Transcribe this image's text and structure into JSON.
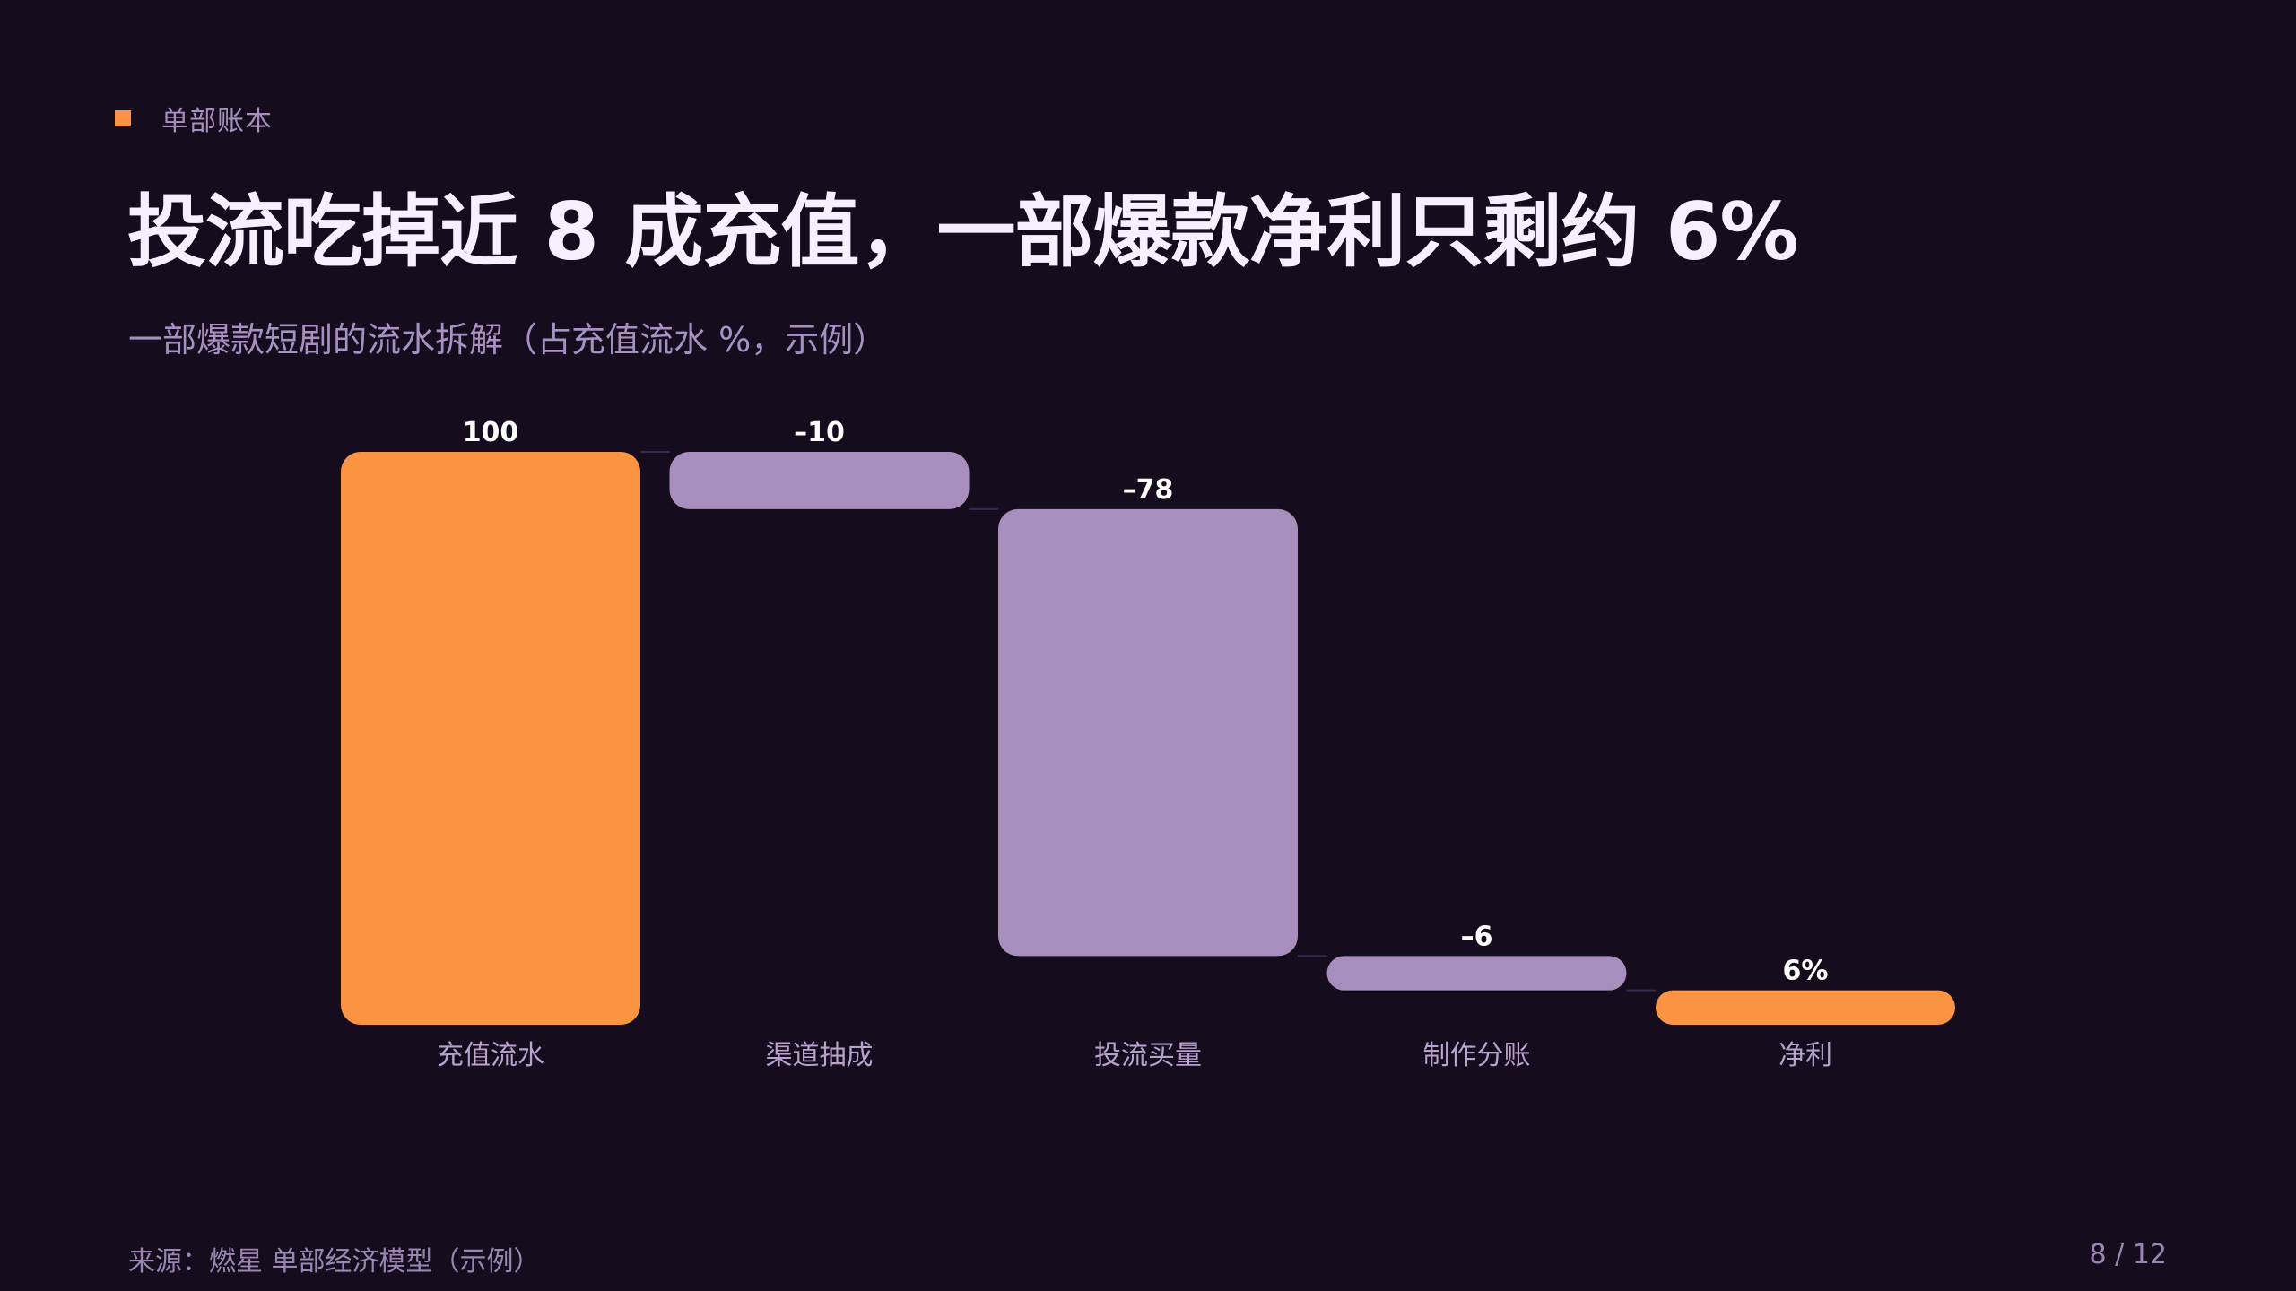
{
  "section": {
    "label": "单部账本"
  },
  "slide": {
    "title": "投流吃掉近 8 成充值，一部爆款净利只剩约 6%",
    "subtitle": "一部爆款短剧的流水拆解（占充值流水 %，示例）",
    "source": "来源：燃星 单部经济模型（示例）",
    "page": "8 / 12"
  },
  "colors": {
    "background": "#150c1d",
    "accent": "#fa9440",
    "decrease": "#a78fbd",
    "title": "#f7f1ff",
    "subtitle": "#a791c0"
  },
  "chart_data": {
    "type": "bar",
    "subtype": "waterfall",
    "categories": [
      "充值流水",
      "渠道抽成",
      "投流买量",
      "制作分账",
      "净利"
    ],
    "values": [
      100,
      -10,
      -78,
      -6,
      6
    ],
    "data_labels": [
      "100",
      "–10",
      "–78",
      "–6",
      "6%"
    ],
    "kinds": [
      "total",
      "decrease",
      "decrease",
      "decrease",
      "total"
    ],
    "ylim": [
      0,
      100
    ],
    "grid": false,
    "legend": "none"
  }
}
